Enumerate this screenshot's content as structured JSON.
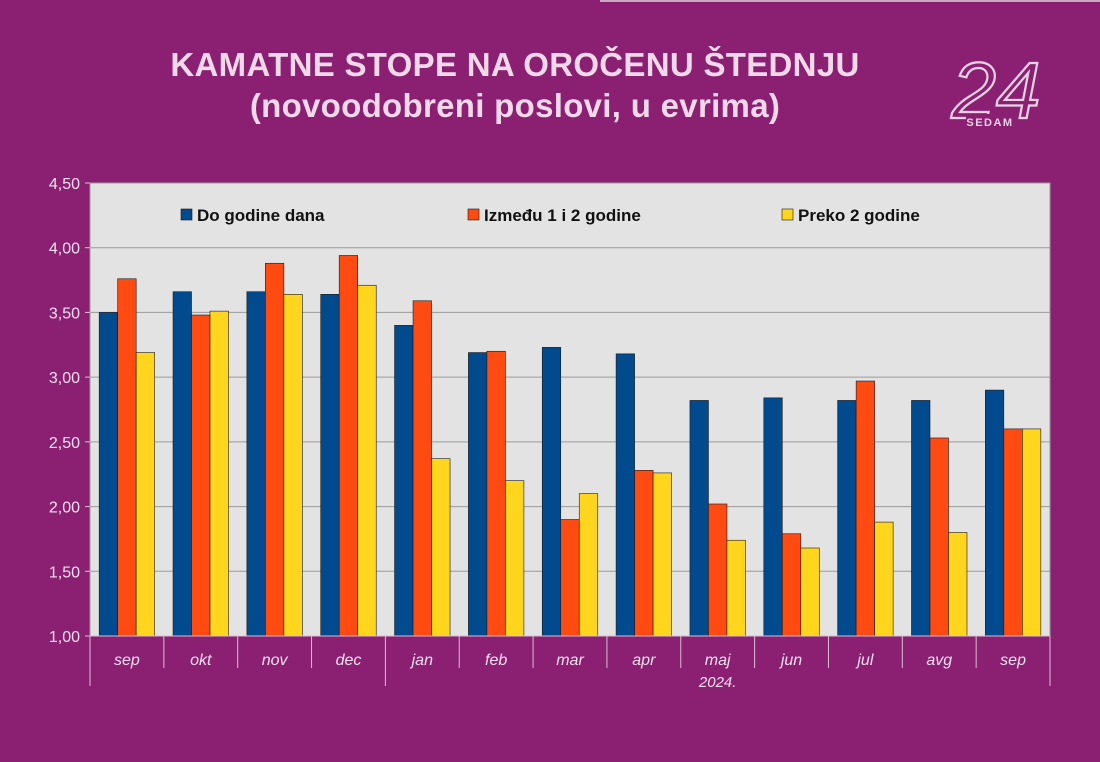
{
  "title_line1": "KAMATNE STOPE NA OROČENU ŠTEDNJU",
  "title_line2": "(novoodobreni poslovi, u evrima)",
  "logo": {
    "number": "24",
    "word": "SEDAM"
  },
  "colors": {
    "background": "#8b1f72",
    "plot_area": "#e3e3e3",
    "series": [
      "#004a8d",
      "#ff4a12",
      "#ffd51e"
    ]
  },
  "chart_data": {
    "type": "bar",
    "categories": [
      "sep",
      "okt",
      "nov",
      "dec",
      "jan",
      "feb",
      "mar",
      "apr",
      "maj",
      "jun",
      "jul",
      "avg",
      "sep"
    ],
    "category_sublabels": {
      "8": "2024."
    },
    "series": [
      {
        "name": "Do godine dana",
        "values": [
          3.5,
          3.66,
          3.66,
          3.64,
          3.4,
          3.19,
          3.23,
          3.18,
          2.82,
          2.84,
          2.82,
          2.82,
          2.9
        ]
      },
      {
        "name": "Između 1 i 2 godine",
        "values": [
          3.76,
          3.48,
          3.88,
          3.94,
          3.59,
          3.2,
          1.9,
          2.28,
          2.02,
          1.79,
          2.97,
          2.53,
          2.6
        ]
      },
      {
        "name": "Preko 2 godine",
        "values": [
          3.19,
          3.51,
          3.64,
          3.71,
          2.37,
          2.2,
          2.1,
          2.26,
          1.74,
          1.68,
          1.88,
          1.8,
          2.6
        ]
      }
    ],
    "ylim": [
      1.0,
      4.5
    ],
    "yticks": [
      "1,00",
      "1,50",
      "2,00",
      "2,50",
      "3,00",
      "3,50",
      "4,00",
      "4,50"
    ],
    "grid": true,
    "legend_position": "top-inside"
  }
}
